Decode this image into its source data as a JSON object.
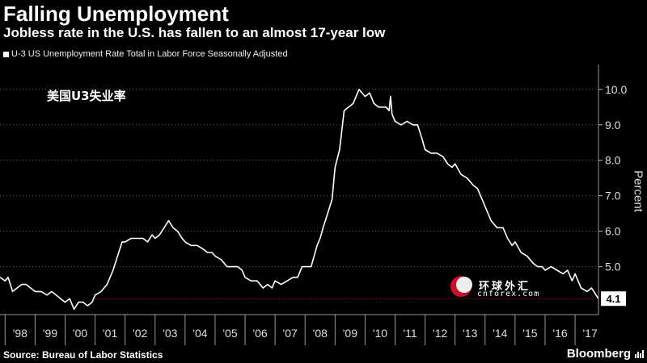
{
  "header": {
    "title": "Falling Unemployment",
    "subtitle": "Jobless rate in the U.S. has fallen to an almost 17-year low"
  },
  "legend": {
    "label": "U-3 US Unemployment Rate Total in Labor Force Seasonally Adjusted"
  },
  "annotation": {
    "text": "美国U3失业率"
  },
  "footer": {
    "source": "Source: Bureau of Labor Statistics",
    "brand": "Bloomberg"
  },
  "watermark": {
    "text": "环球外汇",
    "url": "cnforex.com"
  },
  "colors": {
    "background": "#000000",
    "line": "#ffffff",
    "reference_line": "#c8102e",
    "grid": "#666666"
  },
  "chart_data": {
    "type": "line",
    "ylabel": "Percent",
    "ylim": [
      3.65,
      10.7
    ],
    "xlim": [
      1997.83,
      2017.78
    ],
    "yticks": [
      {
        "value": 5.0,
        "label": "5.0"
      },
      {
        "value": 6.0,
        "label": "6.0"
      },
      {
        "value": 7.0,
        "label": "7.0"
      },
      {
        "value": 8.0,
        "label": "8.0"
      },
      {
        "value": 9.0,
        "label": "9.0"
      },
      {
        "value": 10.0,
        "label": "10.0"
      }
    ],
    "xticks": [
      {
        "value": 1998,
        "label": "'98"
      },
      {
        "value": 1999,
        "label": "'99"
      },
      {
        "value": 2000,
        "label": "'00"
      },
      {
        "value": 2001,
        "label": "'01"
      },
      {
        "value": 2002,
        "label": "'02"
      },
      {
        "value": 2003,
        "label": "'03"
      },
      {
        "value": 2004,
        "label": "'04"
      },
      {
        "value": 2005,
        "label": "'05"
      },
      {
        "value": 2006,
        "label": "'06"
      },
      {
        "value": 2007,
        "label": "'07"
      },
      {
        "value": 2008,
        "label": "'08"
      },
      {
        "value": 2009,
        "label": "'09"
      },
      {
        "value": 2010,
        "label": "'10"
      },
      {
        "value": 2011,
        "label": "'11"
      },
      {
        "value": 2012,
        "label": "'12"
      },
      {
        "value": 2013,
        "label": "'13"
      },
      {
        "value": 2014,
        "label": "'14"
      },
      {
        "value": 2015,
        "label": "'15"
      },
      {
        "value": 2016,
        "label": "'16"
      },
      {
        "value": 2017,
        "label": "'17"
      }
    ],
    "reference_line": {
      "value": 4.1,
      "x_start": 2001.0
    },
    "last_value_label": "4.1",
    "grid": true,
    "series": [
      {
        "name": "U-3 US Unemployment Rate Total in Labor Force Seasonally Adjusted",
        "x": [
          1997.83,
          1998.0,
          1998.1,
          1998.25,
          1998.4,
          1998.55,
          1998.7,
          1998.85,
          1999.0,
          1999.2,
          1999.4,
          1999.55,
          1999.7,
          1999.85,
          2000.0,
          2000.15,
          2000.3,
          2000.45,
          2000.6,
          2000.75,
          2000.9,
          2001.0,
          2001.2,
          2001.4,
          2001.6,
          2001.75,
          2001.9,
          2002.0,
          2002.2,
          2002.4,
          2002.6,
          2002.75,
          2002.9,
          2003.0,
          2003.15,
          2003.3,
          2003.45,
          2003.6,
          2003.75,
          2003.9,
          2004.0,
          2004.2,
          2004.4,
          2004.6,
          2004.75,
          2004.9,
          2005.0,
          2005.2,
          2005.4,
          2005.6,
          2005.75,
          2005.9,
          2006.0,
          2006.2,
          2006.4,
          2006.6,
          2006.75,
          2006.9,
          2007.0,
          2007.2,
          2007.4,
          2007.6,
          2007.75,
          2007.9,
          2008.0,
          2008.2,
          2008.4,
          2008.5,
          2008.6,
          2008.75,
          2008.9,
          2009.0,
          2009.15,
          2009.3,
          2009.45,
          2009.6,
          2009.7,
          2009.8,
          2009.9,
          2010.0,
          2010.15,
          2010.3,
          2010.45,
          2010.6,
          2010.7,
          2010.8,
          2010.85,
          2010.9,
          2011.0,
          2011.2,
          2011.4,
          2011.6,
          2011.75,
          2011.9,
          2012.0,
          2012.2,
          2012.4,
          2012.6,
          2012.75,
          2012.9,
          2013.0,
          2013.2,
          2013.4,
          2013.6,
          2013.75,
          2013.9,
          2014.0,
          2014.2,
          2014.4,
          2014.6,
          2014.75,
          2014.9,
          2015.0,
          2015.2,
          2015.4,
          2015.6,
          2015.75,
          2015.9,
          2016.0,
          2016.2,
          2016.4,
          2016.6,
          2016.75,
          2016.9,
          2017.0,
          2017.2,
          2017.4,
          2017.55,
          2017.7,
          2017.78
        ],
        "values": [
          4.7,
          4.6,
          4.7,
          4.3,
          4.4,
          4.5,
          4.5,
          4.4,
          4.3,
          4.3,
          4.2,
          4.3,
          4.2,
          4.1,
          4.0,
          4.1,
          3.8,
          4.0,
          4.0,
          3.9,
          4.0,
          4.2,
          4.3,
          4.5,
          4.9,
          5.3,
          5.7,
          5.7,
          5.8,
          5.8,
          5.8,
          5.7,
          5.9,
          5.8,
          5.9,
          6.1,
          6.3,
          6.1,
          6.0,
          5.8,
          5.7,
          5.6,
          5.6,
          5.5,
          5.4,
          5.4,
          5.3,
          5.2,
          5.0,
          5.0,
          5.0,
          4.9,
          4.7,
          4.6,
          4.6,
          4.4,
          4.5,
          4.4,
          4.6,
          4.5,
          4.6,
          4.7,
          4.7,
          5.0,
          5.0,
          5.0,
          5.6,
          5.8,
          6.1,
          6.5,
          6.9,
          7.8,
          8.3,
          9.4,
          9.5,
          9.6,
          9.8,
          10.0,
          9.9,
          9.8,
          9.9,
          9.6,
          9.5,
          9.5,
          9.5,
          9.4,
          9.8,
          9.3,
          9.1,
          9.0,
          9.1,
          9.0,
          9.0,
          8.6,
          8.3,
          8.2,
          8.2,
          8.1,
          7.9,
          7.8,
          7.9,
          7.6,
          7.5,
          7.3,
          7.2,
          6.9,
          6.7,
          6.3,
          6.1,
          6.1,
          5.8,
          5.6,
          5.7,
          5.4,
          5.3,
          5.1,
          5.0,
          5.0,
          4.9,
          5.0,
          4.9,
          4.8,
          4.9,
          4.6,
          4.8,
          4.4,
          4.3,
          4.4,
          4.2,
          4.1
        ]
      }
    ]
  }
}
